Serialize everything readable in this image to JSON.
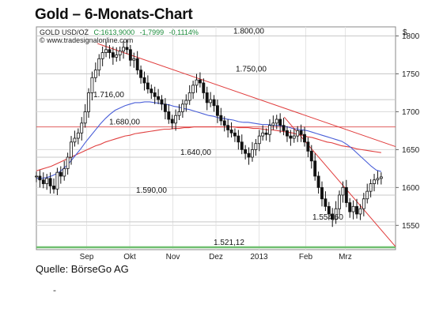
{
  "header": {
    "title": "Gold – 6-Monats-Chart"
  },
  "footer": {
    "source": "Quelle: BörseGo AG",
    "dash": "-"
  },
  "chart_data": {
    "type": "candlestick",
    "title": "Gold – 6-Monats-Chart",
    "info": {
      "symbol": "GOLD USD/OZ",
      "close": "C:1613,9000",
      "change": "-1,7999",
      "change_pct": "-0,1114%",
      "website": "© www.tradesignalonline.com"
    },
    "currency": "$",
    "ylim": [
      1518,
      1812
    ],
    "y_ticks": [
      1550,
      1600,
      1650,
      1700,
      1750,
      1800
    ],
    "y_tick_labels": [
      "1550",
      "1600",
      "1650",
      "1700",
      "1750",
      "1800"
    ],
    "x_tick_labels": [
      "Sep",
      "Okt",
      "Nov",
      "Dez",
      "2013",
      "Feb",
      "Mrz"
    ],
    "x_tick_pos": [
      14,
      26,
      38,
      50,
      62,
      75,
      86
    ],
    "levels": [
      {
        "label": "1.800,00",
        "value": 1800
      },
      {
        "label": "1.750,00",
        "value": 1750
      },
      {
        "label": "1.716,00",
        "value": 1716
      },
      {
        "label": "1.680,00",
        "value": 1680
      },
      {
        "label": "1.640,00",
        "value": 1640
      },
      {
        "label": "1.590,00",
        "value": 1590
      },
      {
        "label": "1.554,60",
        "value": 1554.6
      },
      {
        "label": "1.521,12",
        "value": 1521.12
      }
    ],
    "price": [
      1615,
      1610,
      1605,
      1612,
      1602,
      1598,
      1620,
      1615,
      1625,
      1640,
      1660,
      1665,
      1672,
      1685,
      1700,
      1725,
      1745,
      1755,
      1770,
      1778,
      1782,
      1778,
      1772,
      1775,
      1780,
      1785,
      1782,
      1768,
      1770,
      1755,
      1745,
      1738,
      1730,
      1725,
      1720,
      1716,
      1710,
      1700,
      1690,
      1685,
      1695,
      1700,
      1710,
      1715,
      1725,
      1735,
      1742,
      1738,
      1725,
      1712,
      1716,
      1708,
      1695,
      1688,
      1682,
      1676,
      1672,
      1668,
      1660,
      1650,
      1645,
      1640,
      1650,
      1658,
      1668,
      1672,
      1670,
      1682,
      1685,
      1690,
      1682,
      1675,
      1668,
      1665,
      1668,
      1675,
      1670,
      1660,
      1648,
      1635,
      1615,
      1600,
      1585,
      1575,
      1565,
      1558,
      1572,
      1590,
      1600,
      1580,
      1568,
      1575,
      1565,
      1572,
      1585,
      1595,
      1605,
      1610,
      1612,
      1614
    ],
    "sma_blue": [
      1612,
      1612,
      1613,
      1615,
      1618,
      1622,
      1628,
      1635,
      1643,
      1651,
      1660,
      1668,
      1676,
      1684,
      1691,
      1697,
      1702,
      1705,
      1708,
      1710,
      1712,
      1712,
      1713,
      1713,
      1712,
      1711,
      1710,
      1709,
      1707,
      1706,
      1704,
      1703,
      1701,
      1699,
      1697,
      1695,
      1694,
      1692,
      1691,
      1690,
      1689,
      1687,
      1686,
      1686,
      1685,
      1684,
      1683,
      1683,
      1682,
      1682,
      1681,
      1680,
      1678,
      1677,
      1676,
      1675,
      1673,
      1671,
      1669,
      1667,
      1665,
      1663,
      1661,
      1657,
      1652,
      1646,
      1640,
      1634,
      1628,
      1623,
      1621
    ],
    "sma_red": [
      1622,
      1624,
      1626,
      1628,
      1631,
      1634,
      1637,
      1640,
      1643,
      1646,
      1649,
      1652,
      1655,
      1657,
      1660,
      1662,
      1664,
      1666,
      1668,
      1669,
      1671,
      1672,
      1673,
      1674,
      1675,
      1676,
      1677,
      1677,
      1678,
      1678,
      1679,
      1679,
      1680,
      1680,
      1680,
      1680,
      1680,
      1680,
      1680,
      1680,
      1680,
      1679,
      1679,
      1679,
      1678,
      1678,
      1677,
      1676,
      1676,
      1675,
      1674,
      1673,
      1672,
      1670,
      1669,
      1667,
      1666,
      1664,
      1662,
      1660,
      1659,
      1657,
      1655,
      1654,
      1653,
      1651,
      1650,
      1649,
      1648,
      1647,
      1646
    ],
    "trendlines": [
      {
        "from": [
          17,
          1790
        ],
        "to": [
          100,
          1654
        ]
      },
      {
        "from": [
          69,
          1693
        ],
        "to": [
          100,
          1522
        ]
      }
    ]
  }
}
